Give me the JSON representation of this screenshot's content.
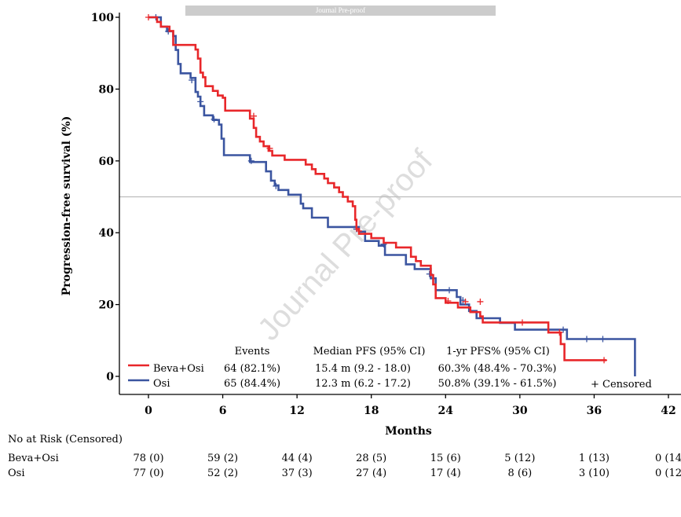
{
  "banner": "Journal Pre-proof",
  "watermark": "Journal Pre-proof",
  "chart_data": {
    "type": "line",
    "title": "",
    "xlabel": "Months",
    "ylabel": "Progression-free survival (%)",
    "xlim": [
      0,
      42
    ],
    "ylim": [
      0,
      100
    ],
    "xticks": [
      0,
      6,
      12,
      18,
      24,
      30,
      36,
      42
    ],
    "yticks": [
      0,
      20,
      40,
      60,
      80,
      100
    ],
    "reference_line_y": 50,
    "grid": false,
    "series": [
      {
        "name": "Beva+Osi",
        "color": "#e8272a",
        "steps": [
          [
            0,
            100
          ],
          [
            0.7,
            100
          ],
          [
            0.7,
            98.7
          ],
          [
            1,
            98.7
          ],
          [
            1,
            97.4
          ],
          [
            1.7,
            97.4
          ],
          [
            1.7,
            96.2
          ],
          [
            2,
            96.2
          ],
          [
            2,
            92.3
          ],
          [
            3.8,
            92.3
          ],
          [
            3.8,
            91
          ],
          [
            4,
            91
          ],
          [
            4,
            88.5
          ],
          [
            4.2,
            88.5
          ],
          [
            4.2,
            84.6
          ],
          [
            4.4,
            84.6
          ],
          [
            4.4,
            83.3
          ],
          [
            4.6,
            83.3
          ],
          [
            4.6,
            80.8
          ],
          [
            5.2,
            80.8
          ],
          [
            5.2,
            79.5
          ],
          [
            5.6,
            79.5
          ],
          [
            5.6,
            78.2
          ],
          [
            6,
            78.2
          ],
          [
            6,
            77.6
          ],
          [
            6.2,
            77.6
          ],
          [
            6.2,
            74
          ],
          [
            8.2,
            74
          ],
          [
            8.2,
            71.8
          ],
          [
            8.5,
            71.8
          ],
          [
            8.5,
            69.2
          ],
          [
            8.7,
            69.2
          ],
          [
            8.7,
            66.7
          ],
          [
            9,
            66.7
          ],
          [
            9,
            65.4
          ],
          [
            9.3,
            65.4
          ],
          [
            9.3,
            64.1
          ],
          [
            9.7,
            64.1
          ],
          [
            9.7,
            62.8
          ],
          [
            10,
            62.8
          ],
          [
            10,
            61.5
          ],
          [
            11,
            61.5
          ],
          [
            11,
            60.3
          ],
          [
            12.7,
            60.3
          ],
          [
            12.7,
            59
          ],
          [
            13.2,
            59
          ],
          [
            13.2,
            57.7
          ],
          [
            13.5,
            57.7
          ],
          [
            13.5,
            56.4
          ],
          [
            14.2,
            56.4
          ],
          [
            14.2,
            55.1
          ],
          [
            14.5,
            55.1
          ],
          [
            14.5,
            53.8
          ],
          [
            15,
            53.8
          ],
          [
            15,
            52.6
          ],
          [
            15.4,
            52.6
          ],
          [
            15.4,
            51.3
          ],
          [
            15.7,
            51.3
          ],
          [
            15.7,
            50
          ],
          [
            16.1,
            50
          ],
          [
            16.1,
            48.7
          ],
          [
            16.5,
            48.7
          ],
          [
            16.5,
            47.4
          ],
          [
            16.7,
            47.4
          ],
          [
            16.7,
            43.6
          ],
          [
            16.8,
            43.6
          ],
          [
            16.8,
            41
          ],
          [
            17,
            41
          ],
          [
            17,
            39.7
          ],
          [
            18,
            39.7
          ],
          [
            18,
            38.5
          ],
          [
            19,
            38.5
          ],
          [
            19,
            37.2
          ],
          [
            20,
            37.2
          ],
          [
            20,
            35.9
          ],
          [
            21.2,
            35.9
          ],
          [
            21.2,
            33.3
          ],
          [
            21.6,
            33.3
          ],
          [
            21.6,
            32.1
          ],
          [
            22,
            32.1
          ],
          [
            22,
            30.8
          ],
          [
            22.8,
            30.8
          ],
          [
            22.8,
            28.2
          ],
          [
            23,
            28.2
          ],
          [
            23,
            25.6
          ],
          [
            23.2,
            25.6
          ],
          [
            23.2,
            21.8
          ],
          [
            24,
            21.8
          ],
          [
            24,
            20.5
          ],
          [
            25,
            20.5
          ],
          [
            25,
            19.2
          ],
          [
            26,
            19.2
          ],
          [
            26,
            17.9
          ],
          [
            26.8,
            17.9
          ],
          [
            26.8,
            16.7
          ],
          [
            27,
            16.7
          ],
          [
            27,
            15
          ],
          [
            32.3,
            15
          ],
          [
            32.3,
            12.2
          ],
          [
            33.3,
            12.2
          ],
          [
            33.3,
            9
          ],
          [
            33.6,
            9
          ],
          [
            33.6,
            4.5
          ],
          [
            37,
            4.5
          ]
        ],
        "censored": [
          [
            0,
            100
          ],
          [
            8.5,
            72.5
          ],
          [
            9.8,
            63.5
          ],
          [
            17,
            40.5
          ],
          [
            24.2,
            21
          ],
          [
            25.6,
            20.8
          ],
          [
            26.8,
            20.8
          ],
          [
            30.2,
            15
          ],
          [
            33.2,
            12.2
          ],
          [
            36.8,
            4.5
          ]
        ]
      },
      {
        "name": "Osi",
        "color": "#3b55a0",
        "steps": [
          [
            0,
            100
          ],
          [
            0.4,
            100
          ],
          [
            0.4,
            100
          ],
          [
            1,
            100
          ],
          [
            1,
            97.4
          ],
          [
            1.5,
            97.4
          ],
          [
            1.5,
            96.1
          ],
          [
            2,
            96.1
          ],
          [
            2,
            94.8
          ],
          [
            2.2,
            94.8
          ],
          [
            2.2,
            90.9
          ],
          [
            2.4,
            90.9
          ],
          [
            2.4,
            87
          ],
          [
            2.6,
            87
          ],
          [
            2.6,
            84.4
          ],
          [
            3.4,
            84.4
          ],
          [
            3.4,
            83.1
          ],
          [
            3.8,
            83.1
          ],
          [
            3.8,
            79.2
          ],
          [
            4,
            79.2
          ],
          [
            4,
            77.9
          ],
          [
            4.2,
            77.9
          ],
          [
            4.2,
            75.3
          ],
          [
            4.5,
            75.3
          ],
          [
            4.5,
            72.7
          ],
          [
            5.2,
            72.7
          ],
          [
            5.2,
            71.4
          ],
          [
            5.7,
            71.4
          ],
          [
            5.7,
            70.1
          ],
          [
            5.9,
            70.1
          ],
          [
            5.9,
            66.2
          ],
          [
            6.1,
            66.2
          ],
          [
            6.1,
            61.6
          ],
          [
            8.2,
            61.6
          ],
          [
            8.2,
            59.7
          ],
          [
            9.5,
            59.7
          ],
          [
            9.5,
            57.1
          ],
          [
            9.9,
            57.1
          ],
          [
            9.9,
            54.5
          ],
          [
            10.2,
            54.5
          ],
          [
            10.2,
            53.2
          ],
          [
            10.5,
            53.2
          ],
          [
            10.5,
            51.9
          ],
          [
            11.3,
            51.9
          ],
          [
            11.3,
            50.6
          ],
          [
            12.3,
            50.6
          ],
          [
            12.3,
            48.1
          ],
          [
            12.5,
            48.1
          ],
          [
            12.5,
            46.8
          ],
          [
            13.2,
            46.8
          ],
          [
            13.2,
            44.2
          ],
          [
            14.5,
            44.2
          ],
          [
            14.5,
            41.6
          ],
          [
            17,
            41.6
          ],
          [
            17,
            40.3
          ],
          [
            17.5,
            40.3
          ],
          [
            17.5,
            37.7
          ],
          [
            18.6,
            37.7
          ],
          [
            18.6,
            36.4
          ],
          [
            19.1,
            36.4
          ],
          [
            19.1,
            33.8
          ],
          [
            20.8,
            33.8
          ],
          [
            20.8,
            31.2
          ],
          [
            21.5,
            31.2
          ],
          [
            21.5,
            29.9
          ],
          [
            22.8,
            29.9
          ],
          [
            22.8,
            27.3
          ],
          [
            23.2,
            27.3
          ],
          [
            23.2,
            24
          ],
          [
            24.9,
            24
          ],
          [
            24.9,
            22.1
          ],
          [
            25.2,
            22.1
          ],
          [
            25.2,
            20
          ],
          [
            25.9,
            20
          ],
          [
            25.9,
            18.2
          ],
          [
            26.5,
            18.2
          ],
          [
            26.5,
            16.2
          ],
          [
            28.4,
            16.2
          ],
          [
            28.4,
            14.9
          ],
          [
            29.6,
            14.9
          ],
          [
            29.6,
            13
          ],
          [
            33.8,
            13
          ],
          [
            33.8,
            10.4
          ],
          [
            39.3,
            10.4
          ],
          [
            39.3,
            0
          ]
        ],
        "censored": [
          [
            0.6,
            100
          ],
          [
            1.6,
            96.1
          ],
          [
            3.5,
            82.5
          ],
          [
            4.2,
            76.5
          ],
          [
            5.3,
            71.6
          ],
          [
            8.3,
            60
          ],
          [
            10.3,
            53
          ],
          [
            16.8,
            41
          ],
          [
            19,
            36.8
          ],
          [
            22.7,
            28.5
          ],
          [
            24.3,
            24
          ],
          [
            25.4,
            21.2
          ],
          [
            33.5,
            13
          ],
          [
            35.4,
            10.4
          ],
          [
            36.7,
            10.4
          ]
        ]
      }
    ],
    "table": {
      "headers": [
        "Events",
        "Median PFS (95% CI)",
        "1-yr PFS% (95% CI)"
      ],
      "rows": [
        {
          "group": "Beva+Osi",
          "events": "64 (82.1%)",
          "median": "15.4 m (9.2 - 18.0)",
          "oneyr": "60.3% (48.4% - 70.3%)"
        },
        {
          "group": "Osi",
          "events": "65 (84.4%)",
          "median": "12.3 m (6.2 - 17.2)",
          "oneyr": "50.8% (39.1% - 61.5%)"
        }
      ],
      "censored_note": "+ Censored"
    },
    "risk_table": {
      "title": "No at Risk (Censored)",
      "groups": [
        {
          "name": "Beva+Osi",
          "values": [
            "78 (0)",
            "59 (2)",
            "44 (4)",
            "28 (5)",
            "15 (6)",
            "5 (12)",
            "1 (13)",
            "0 (14"
          ]
        },
        {
          "name": "Osi",
          "values": [
            "77 (0)",
            "52 (2)",
            "37 (3)",
            "27 (4)",
            "17 (4)",
            "8 (6)",
            "3 (10)",
            "0 (12"
          ]
        }
      ]
    }
  }
}
